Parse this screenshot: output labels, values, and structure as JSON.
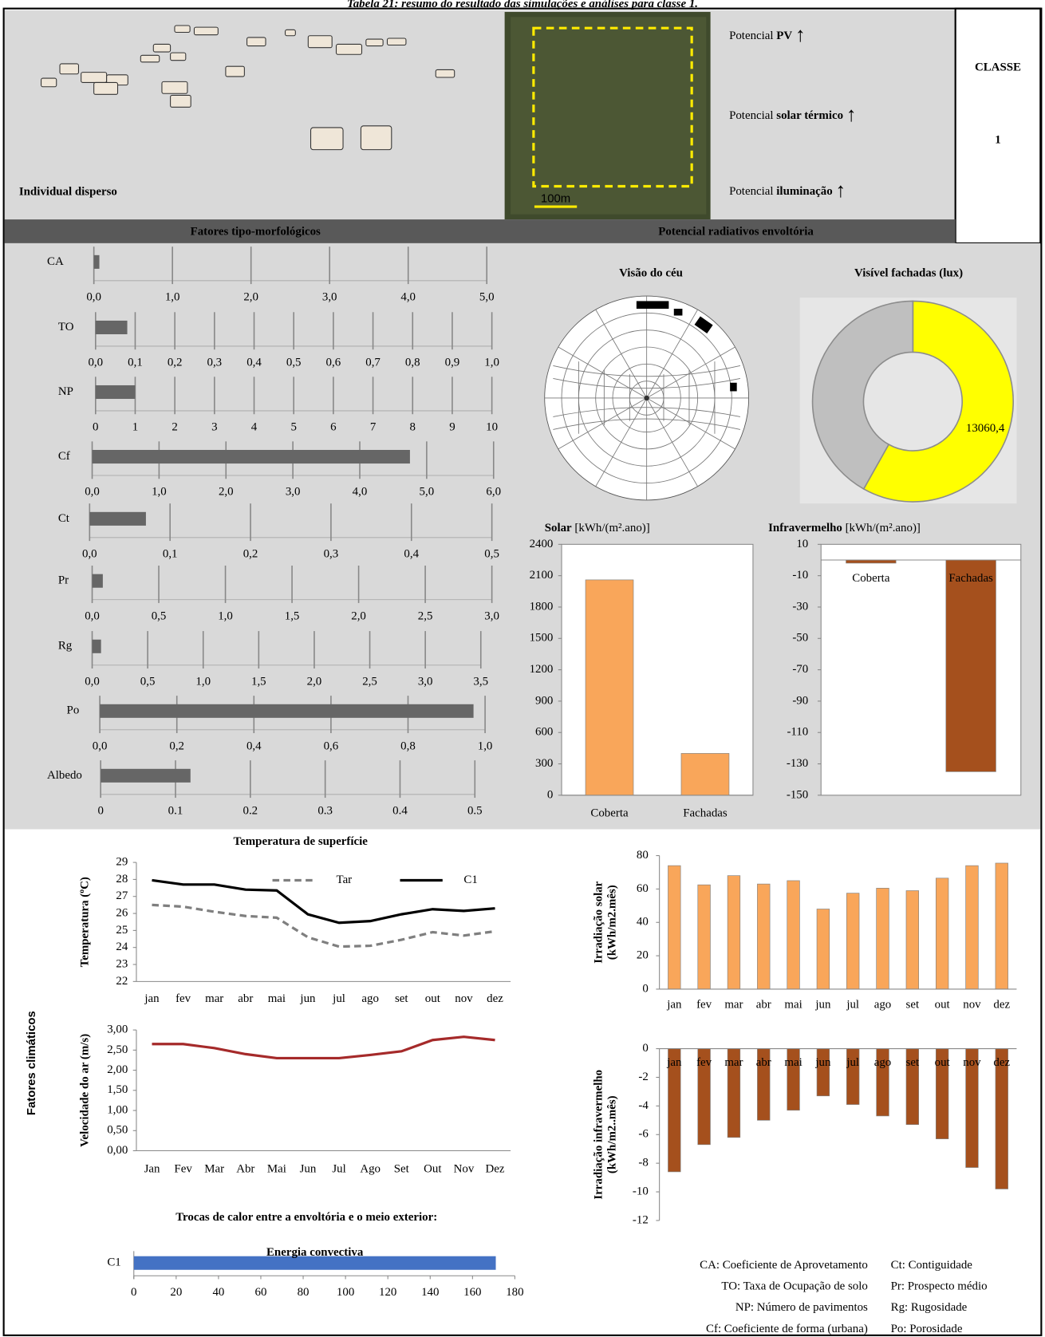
{
  "caption": "Tabela 21: resumo do resultado das simulações e análises para classe 1.",
  "header": {
    "title": "Individual disperso",
    "potentials": [
      {
        "prefix": "Potencial",
        "bold": "PV",
        "arrow": "↑"
      },
      {
        "prefix": "Potencial",
        "bold": "solar térmico",
        "arrow": "↑"
      },
      {
        "prefix": "Potencial",
        "bold": "iluminação",
        "arrow": "↑"
      }
    ],
    "class_label": "CLASSE",
    "class_number": "1",
    "scale_label": "100m"
  },
  "sections": {
    "morphology": "Fatores tipo-morfológicos",
    "radiative": "Potencial radiativos envoltória",
    "climate": "Fatores climáticos"
  },
  "sky_view_title": "Visão do céu",
  "chart_data": [
    {
      "type": "hbar",
      "categories": [
        "CA"
      ],
      "values": [
        0.07
      ],
      "color": "#666666",
      "xlim": [
        0,
        5
      ],
      "xticks": [
        {
          "value": 0,
          "label": "0,0"
        },
        {
          "value": 1,
          "label": "1,0"
        },
        {
          "value": 2,
          "label": "2,0"
        },
        {
          "value": 3,
          "label": "3,0"
        },
        {
          "value": 4,
          "label": "4,0"
        },
        {
          "value": 5,
          "label": "5,0"
        }
      ]
    },
    {
      "type": "hbar",
      "categories": [
        "TO"
      ],
      "values": [
        0.08
      ],
      "color": "#666666",
      "xlim": [
        0,
        1
      ],
      "xticks": [
        {
          "value": 0,
          "label": "0,0"
        },
        {
          "value": 0.1,
          "label": "0,1"
        },
        {
          "value": 0.2,
          "label": "0,2"
        },
        {
          "value": 0.3,
          "label": "0,3"
        },
        {
          "value": 0.4,
          "label": "0,4"
        },
        {
          "value": 0.5,
          "label": "0,5"
        },
        {
          "value": 0.6,
          "label": "0,6"
        },
        {
          "value": 0.7,
          "label": "0,7"
        },
        {
          "value": 0.8,
          "label": "0,8"
        },
        {
          "value": 0.9,
          "label": "0,9"
        },
        {
          "value": 1,
          "label": "1,0"
        }
      ]
    },
    {
      "type": "hbar",
      "categories": [
        "NP"
      ],
      "values": [
        1
      ],
      "color": "#666666",
      "xlim": [
        0,
        10
      ],
      "xticks": [
        0,
        1,
        2,
        3,
        4,
        5,
        6,
        7,
        8,
        9,
        10
      ]
    },
    {
      "type": "hbar",
      "categories": [
        "Cf"
      ],
      "values": [
        4.75
      ],
      "color": "#666666",
      "xlim": [
        0,
        6
      ],
      "xticks": [
        {
          "value": 0,
          "label": "0,0"
        },
        {
          "value": 1,
          "label": "1,0"
        },
        {
          "value": 2,
          "label": "2,0"
        },
        {
          "value": 3,
          "label": "3,0"
        },
        {
          "value": 4,
          "label": "4,0"
        },
        {
          "value": 5,
          "label": "5,0"
        },
        {
          "value": 6,
          "label": "6,0"
        }
      ]
    },
    {
      "type": "hbar",
      "categories": [
        "Ct"
      ],
      "values": [
        0.07
      ],
      "color": "#666666",
      "xlim": [
        0,
        0.5
      ],
      "xticks": [
        {
          "value": 0,
          "label": "0,0"
        },
        {
          "value": 0.1,
          "label": "0,1"
        },
        {
          "value": 0.2,
          "label": "0,2"
        },
        {
          "value": 0.3,
          "label": "0,3"
        },
        {
          "value": 0.4,
          "label": "0,4"
        },
        {
          "value": 0.5,
          "label": "0,5"
        }
      ]
    },
    {
      "type": "hbar",
      "categories": [
        "Pr"
      ],
      "values": [
        0.08
      ],
      "color": "#666666",
      "xlim": [
        0,
        3
      ],
      "xticks": [
        {
          "value": 0,
          "label": "0,0"
        },
        {
          "value": 0.5,
          "label": "0,5"
        },
        {
          "value": 1,
          "label": "1,0"
        },
        {
          "value": 1.5,
          "label": "1,5"
        },
        {
          "value": 2,
          "label": "2,0"
        },
        {
          "value": 2.5,
          "label": "2,5"
        },
        {
          "value": 3,
          "label": "3,0"
        }
      ]
    },
    {
      "type": "hbar",
      "categories": [
        "Rg"
      ],
      "values": [
        0.08
      ],
      "color": "#666666",
      "xlim": [
        0,
        3.5
      ],
      "xticks": [
        {
          "value": 0,
          "label": "0,0"
        },
        {
          "value": 0.5,
          "label": "0,5"
        },
        {
          "value": 1,
          "label": "1,0"
        },
        {
          "value": 1.5,
          "label": "1,5"
        },
        {
          "value": 2,
          "label": "2,0"
        },
        {
          "value": 2.5,
          "label": "2,5"
        },
        {
          "value": 3,
          "label": "3,0"
        },
        {
          "value": 3.5,
          "label": "3,5"
        }
      ]
    },
    {
      "type": "hbar",
      "categories": [
        "Po"
      ],
      "values": [
        0.97
      ],
      "color": "#666666",
      "xlim": [
        0,
        1
      ],
      "xticks": [
        {
          "value": 0,
          "label": "0,0"
        },
        {
          "value": 0.2,
          "label": "0,2"
        },
        {
          "value": 0.4,
          "label": "0,4"
        },
        {
          "value": 0.6,
          "label": "0,6"
        },
        {
          "value": 0.8,
          "label": "0,8"
        },
        {
          "value": 1,
          "label": "1,0"
        }
      ]
    },
    {
      "type": "hbar",
      "categories": [
        "Albedo"
      ],
      "values": [
        0.12
      ],
      "color": "#666666",
      "xlim": [
        0,
        0.5
      ],
      "xticks": [
        0,
        0.1,
        0.2,
        0.3,
        0.4,
        0.5
      ]
    },
    {
      "type": "donut",
      "title": "Visível fachadas (lux)",
      "values": [
        13060.4,
        9400
      ],
      "value_labels": [
        "13060,4",
        null
      ],
      "colors": [
        "#ffff00",
        "#bfbfbf"
      ]
    },
    {
      "type": "bar",
      "title": "Solar",
      "unit": "[kWh/(m².ano)]",
      "categories": [
        "Coberta",
        "Fachadas"
      ],
      "values": [
        2060,
        400
      ],
      "color": "#f9a65a",
      "ylim": [
        0,
        2400
      ],
      "yticks": [
        0,
        300,
        600,
        900,
        1200,
        1500,
        1800,
        2100,
        2400
      ]
    },
    {
      "type": "bar",
      "title": "Infravermelho",
      "unit": "[kWh/(m².ano)]",
      "categories": [
        "Coberta",
        "Fachadas"
      ],
      "values": [
        -2,
        -135
      ],
      "color": "#a5501d",
      "ylim": [
        -150,
        10
      ],
      "yticks": [
        10,
        -10,
        -30,
        -50,
        -70,
        -90,
        -110,
        -130,
        -150
      ]
    },
    {
      "type": "line",
      "title": "Temperatura de superfície",
      "ylabel": [
        "Temperatura (ºC)"
      ],
      "categories": [
        "jan",
        "fev",
        "mar",
        "abr",
        "mai",
        "jun",
        "jul",
        "ago",
        "set",
        "out",
        "nov",
        "dez"
      ],
      "series": [
        {
          "name": "Tar",
          "color": "#7f7f7f",
          "dashed": true,
          "values": [
            26.5,
            26.4,
            26.1,
            25.85,
            25.75,
            24.6,
            24.05,
            24.1,
            24.45,
            24.9,
            24.7,
            24.95
          ]
        },
        {
          "name": "C1",
          "color": "#000000",
          "dashed": false,
          "values": [
            27.95,
            27.7,
            27.7,
            27.4,
            27.35,
            25.95,
            25.45,
            25.55,
            25.95,
            26.25,
            26.15,
            26.3
          ]
        }
      ],
      "ylim": [
        22,
        29
      ],
      "yticks": [
        22,
        23,
        24,
        25,
        26,
        27,
        28,
        29
      ]
    },
    {
      "type": "line",
      "ylabel": [
        "Velocidade do ar (m/s)"
      ],
      "categories": [
        "Jan",
        "Fev",
        "Mar",
        "Abr",
        "Mai",
        "Jun",
        "Jul",
        "Ago",
        "Set",
        "Out",
        "Nov",
        "Dez"
      ],
      "series": [
        {
          "color": "#a52a2a",
          "dashed": false,
          "values": [
            2.65,
            2.65,
            2.55,
            2.4,
            2.3,
            2.3,
            2.3,
            2.38,
            2.47,
            2.75,
            2.83,
            2.75
          ]
        }
      ],
      "ylim": [
        0,
        3
      ],
      "yticks": [
        {
          "value": 0,
          "label": "0,00"
        },
        {
          "value": 0.5,
          "label": "0,50"
        },
        {
          "value": 1,
          "label": "1,00"
        },
        {
          "value": 1.5,
          "label": "1,50"
        },
        {
          "value": 2,
          "label": "2,00"
        },
        {
          "value": 2.5,
          "label": "2,50"
        },
        {
          "value": 3,
          "label": "3,00"
        }
      ]
    },
    {
      "type": "hbar",
      "title": "Trocas de calor entre a envoltória e o meio exterior:",
      "categories": [
        "C1"
      ],
      "series": [
        {
          "name": "Energia convectiva",
          "color": "#4472c4",
          "values": [
            171
          ]
        }
      ],
      "xlim": [
        0,
        180
      ],
      "xticks": [
        0,
        20,
        40,
        60,
        80,
        100,
        120,
        140,
        160,
        180
      ]
    },
    {
      "type": "bar",
      "ylabel": [
        "Irradiação solar",
        "(kWh/m2.mês)"
      ],
      "categories": [
        "jan",
        "fev",
        "mar",
        "abr",
        "mai",
        "jun",
        "jul",
        "ago",
        "set",
        "out",
        "nov",
        "dez"
      ],
      "values": [
        74,
        62.5,
        68,
        63,
        65,
        48,
        57.5,
        60.5,
        59,
        66.5,
        74,
        75.5
      ],
      "color": "#f9a65a",
      "ylim": [
        0,
        80
      ],
      "yticks": [
        0,
        20,
        40,
        60,
        80
      ]
    },
    {
      "type": "bar",
      "ylabel": [
        "Irradiação infravermelho",
        "(kWh/m2..mês)"
      ],
      "categories": [
        "jan",
        "fev",
        "mar",
        "abr",
        "mai",
        "jun",
        "jul",
        "ago",
        "set",
        "out",
        "nov",
        "dez"
      ],
      "values": [
        -8.6,
        -6.7,
        -6.2,
        -5,
        -4.3,
        -3.3,
        -3.9,
        -4.7,
        -5.3,
        -6.3,
        -8.3,
        -9.8
      ],
      "color": "#a5501d",
      "ylim": [
        -12,
        0
      ],
      "yticks": [
        0,
        -2,
        -4,
        -6,
        -8,
        -10,
        -12
      ]
    }
  ],
  "notes": [
    [
      "CA: Coeficiente de Aprovetamento",
      "Ct: Contiguidade"
    ],
    [
      "TO: Taxa de Ocupação de solo",
      "Pr: Prospecto médio"
    ],
    [
      "NP: Número de pavimentos",
      "Rg: Rugosidade"
    ],
    [
      "Cf: Coeficiente de forma (urbana)",
      "Po: Porosidade"
    ]
  ]
}
